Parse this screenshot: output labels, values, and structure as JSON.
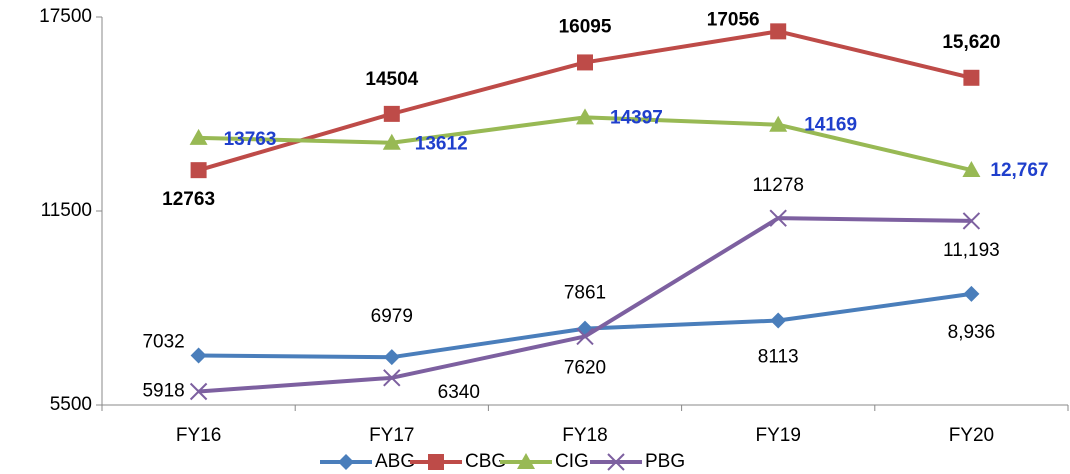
{
  "chart_data": {
    "type": "line",
    "categories": [
      "FY16",
      "FY17",
      "FY18",
      "FY19",
      "FY20"
    ],
    "series": [
      {
        "name": "ABG",
        "color": "#4a7ebb",
        "marker": "diamond",
        "values": [
          7032,
          6979,
          7861,
          8113,
          8936
        ],
        "value_labels": [
          "7032",
          "6979",
          "7861",
          "8113",
          "8,936"
        ]
      },
      {
        "name": "CBG",
        "color": "#be4b48",
        "marker": "square",
        "values": [
          12763,
          14504,
          16095,
          17056,
          15620
        ],
        "value_labels": [
          "12763",
          "14504",
          "16095",
          "17056",
          "15,620"
        ]
      },
      {
        "name": "CIG",
        "color": "#98b954",
        "marker": "triangle",
        "values": [
          13763,
          13612,
          14397,
          14169,
          12767
        ],
        "value_labels": [
          "13763",
          "13612",
          "14397",
          "14169",
          "12,767"
        ]
      },
      {
        "name": "PBG",
        "color": "#7d60a0",
        "marker": "x",
        "values": [
          5918,
          6340,
          7620,
          11278,
          11193
        ],
        "value_labels": [
          "5918",
          "6340",
          "7620",
          "11278",
          "11,193"
        ]
      }
    ],
    "ylim": [
      5500,
      17500
    ],
    "yticks": [
      5500,
      11500,
      17500
    ],
    "legend": "bottom"
  }
}
